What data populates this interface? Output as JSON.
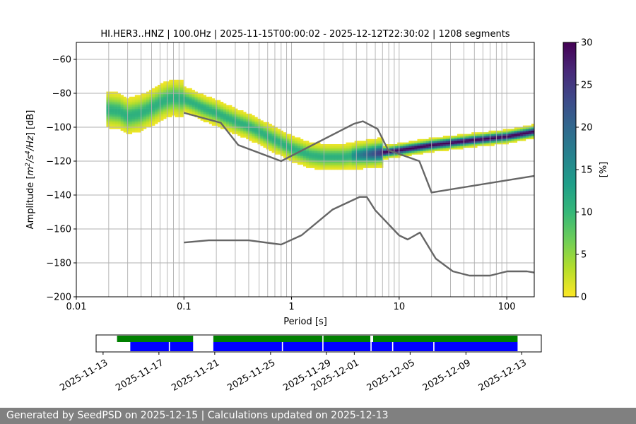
{
  "chart_data": [
    {
      "type": "heatmap",
      "title": "HI.HER3..HNZ | 100.0Hz | 2025-11-15T00:00:02 - 2025-12-12T22:30:02 | 1208 segments",
      "xlabel": "Period [s]",
      "ylabel_parts": [
        "Amplitude [",
        "m",
        "2",
        "/s",
        "4",
        "/Hz",
        "] [dB]"
      ],
      "xscale": "log",
      "xlim": [
        0.01,
        180
      ],
      "ylim": [
        -200,
        -50
      ],
      "xticks": [
        0.01,
        0.1,
        1,
        10,
        100
      ],
      "xtick_labels": [
        "0.01",
        "0.1",
        "1",
        "10",
        "100"
      ],
      "yticks": [
        -200,
        -180,
        -160,
        -140,
        -120,
        -100,
        -80,
        -60
      ],
      "ytick_labels": [
        "−200",
        "−180",
        "−160",
        "−140",
        "−120",
        "−100",
        "−80",
        "−60"
      ],
      "grid": true,
      "colorbar": {
        "label": "[%]",
        "min": 0,
        "max": 30,
        "ticks": [
          0,
          5,
          10,
          15,
          20,
          25,
          30
        ],
        "tick_labels": [
          "0",
          "5",
          "10",
          "15",
          "20",
          "25",
          "30"
        ],
        "colormap": "viridis_r",
        "stops": [
          "#fde725",
          "#b5de2b",
          "#6ece58",
          "#35b779",
          "#1f9e89",
          "#26828e",
          "#31688e",
          "#3e4989",
          "#482878",
          "#440154"
        ]
      },
      "psd_mode": [
        [
          0.019,
          -90
        ],
        [
          0.025,
          -91
        ],
        [
          0.03,
          -94
        ],
        [
          0.04,
          -92
        ],
        [
          0.05,
          -89
        ],
        [
          0.06,
          -86
        ],
        [
          0.07,
          -84
        ],
        [
          0.08,
          -83
        ],
        [
          0.1,
          -84
        ],
        [
          0.12,
          -86
        ],
        [
          0.15,
          -89
        ],
        [
          0.2,
          -92
        ],
        [
          0.3,
          -97
        ],
        [
          0.4,
          -100
        ],
        [
          0.5,
          -103
        ],
        [
          0.7,
          -108
        ],
        [
          1,
          -113
        ],
        [
          1.5,
          -117
        ],
        [
          2,
          -118
        ],
        [
          3,
          -118
        ],
        [
          4,
          -117
        ],
        [
          6,
          -116
        ],
        [
          10,
          -114
        ],
        [
          20,
          -111
        ],
        [
          50,
          -108
        ],
        [
          100,
          -106
        ],
        [
          180,
          -103
        ]
      ],
      "nhnm": [
        [
          0.1,
          -91.5
        ],
        [
          0.22,
          -97.4
        ],
        [
          0.32,
          -110.5
        ],
        [
          0.8,
          -120
        ],
        [
          3.8,
          -98
        ],
        [
          4.6,
          -96.5
        ],
        [
          6.3,
          -101
        ],
        [
          7.9,
          -113.5
        ],
        [
          15.4,
          -120
        ],
        [
          20,
          -138.5
        ],
        [
          180,
          -128.7
        ]
      ],
      "nlnm": [
        [
          0.1,
          -168
        ],
        [
          0.17,
          -166.7
        ],
        [
          0.4,
          -166.7
        ],
        [
          0.8,
          -169.2
        ],
        [
          1.24,
          -163.7
        ],
        [
          2.4,
          -148.6
        ],
        [
          4.3,
          -141.1
        ],
        [
          5,
          -141.1
        ],
        [
          6,
          -149
        ],
        [
          10,
          -163.8
        ],
        [
          12,
          -166.2
        ],
        [
          15.6,
          -162.1
        ],
        [
          21.9,
          -177.5
        ],
        [
          31.6,
          -185
        ],
        [
          45,
          -187.5
        ],
        [
          70,
          -187.5
        ],
        [
          101,
          -185
        ],
        [
          154,
          -185
        ],
        [
          180,
          -185.7
        ]
      ]
    },
    {
      "type": "timeline",
      "date_min": "2025-11-13",
      "date_max": "2025-12-13",
      "xlim_days": [
        -0.5,
        31.4
      ],
      "date_ticks": [
        {
          "day": 0,
          "label": "2025-11-13"
        },
        {
          "day": 4,
          "label": "2025-11-17"
        },
        {
          "day": 8,
          "label": "2025-11-21"
        },
        {
          "day": 12,
          "label": "2025-11-25"
        },
        {
          "day": 16,
          "label": "2025-11-29"
        },
        {
          "day": 18,
          "label": "2025-12-01"
        },
        {
          "day": 22,
          "label": "2025-12-05"
        },
        {
          "day": 26,
          "label": "2025-12-09"
        },
        {
          "day": 30,
          "label": "2025-12-13"
        }
      ],
      "green_segments": [
        [
          1,
          6.45
        ],
        [
          7.9,
          19.15
        ],
        [
          19.35,
          29.7
        ]
      ],
      "blue_segments": [
        [
          1.95,
          6.45
        ],
        [
          7.9,
          29.7
        ]
      ],
      "gaps": [
        4.75,
        12.85,
        15.75,
        19.2,
        20.75,
        23.7
      ]
    }
  ],
  "footer": "Generated by SeedPSD on 2025-12-15 | Calculations updated on 2025-12-13"
}
